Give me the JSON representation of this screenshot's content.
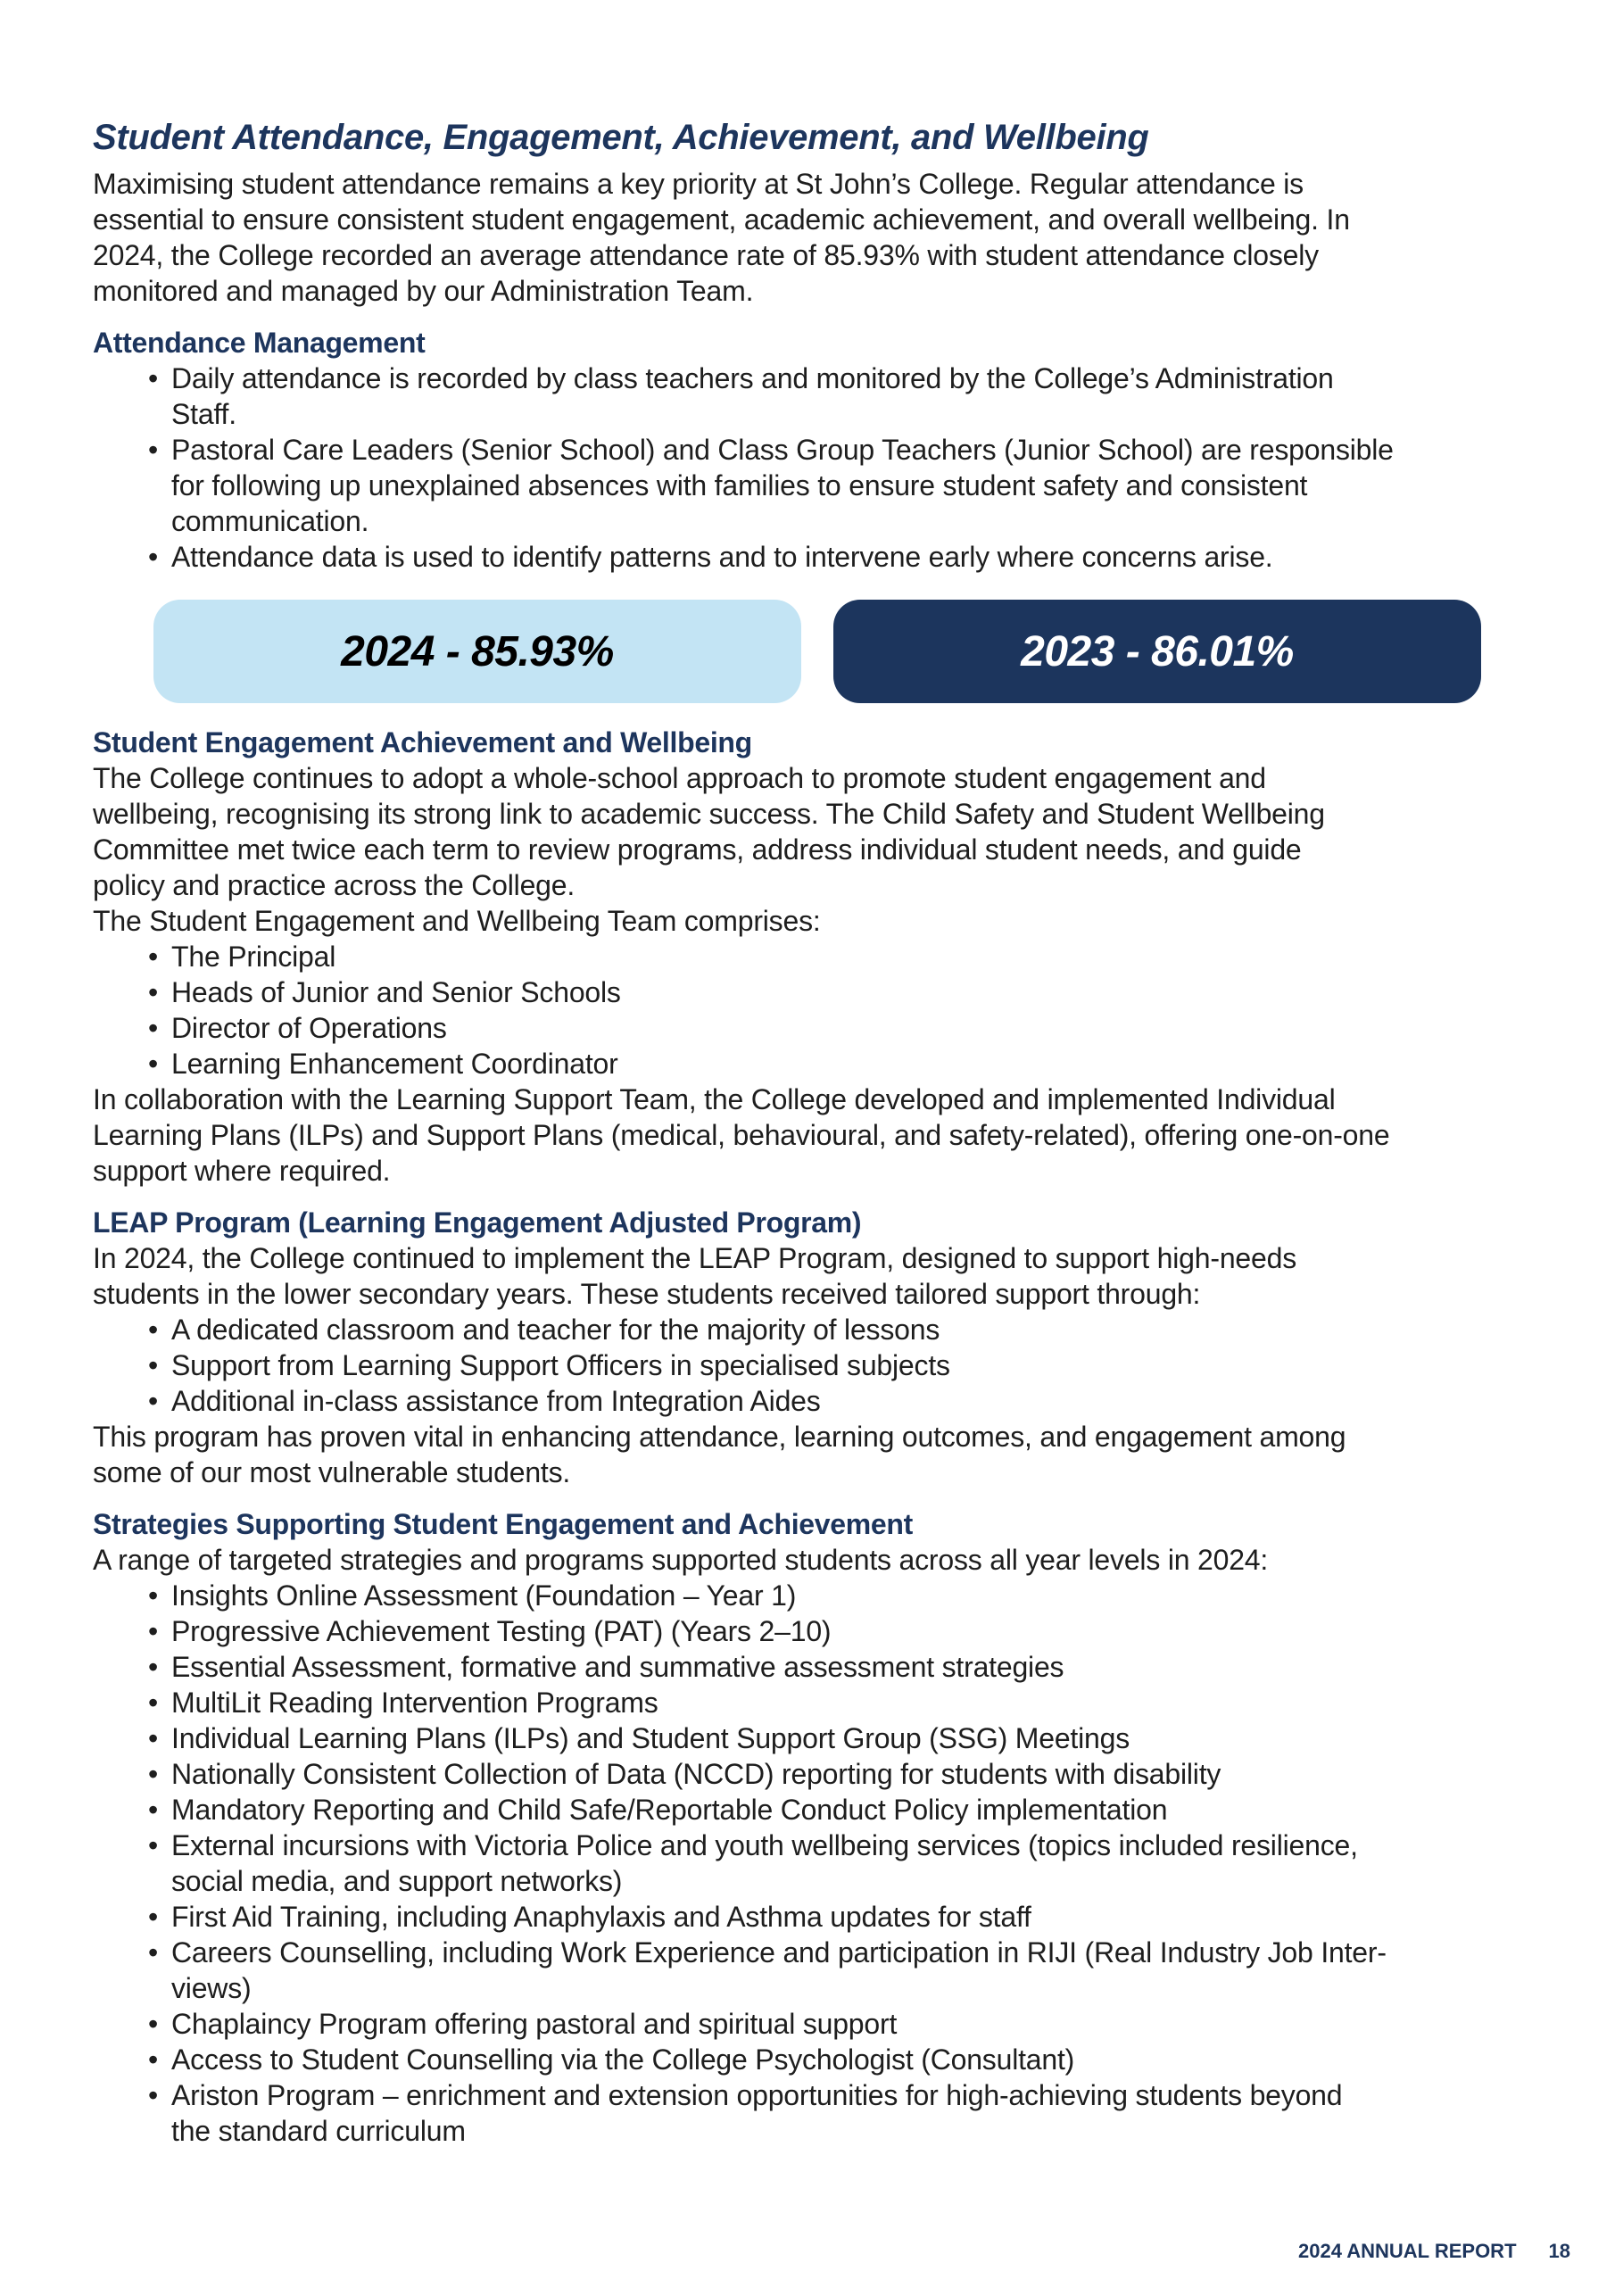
{
  "title": "Student Attendance, Engagement, Achievement, and Wellbeing",
  "intro": [
    "Maximising student attendance remains a key priority at St John’s College. Regular attendance is",
    "essential to ensure consistent student engagement, academic achievement, and overall wellbeing. In",
    "2024, the College recorded an average attendance rate of 85.93% with student attendance closely",
    "monitored and managed by our Administration Team."
  ],
  "attendance_management": {
    "heading": "Attendance Management",
    "bullets": [
      [
        "Daily attendance is recorded by class teachers and monitored by the College’s Administration",
        "Staff."
      ],
      [
        "Pastoral Care Leaders (Senior School) and Class Group Teachers (Junior School) are responsible",
        "for following up unexplained absences with families to ensure student safety and consistent",
        "communication."
      ],
      [
        "Attendance data is used to identify patterns and to intervene early where concerns arise."
      ]
    ]
  },
  "stats": [
    {
      "label": "2024 - 85.93%",
      "color": "#c3e4f4"
    },
    {
      "label": "2023 - 86.01%",
      "color": "#1c355d"
    }
  ],
  "engagement": {
    "heading": "Student Engagement Achievement and Wellbeing",
    "lines": [
      "The College continues to adopt a whole-school approach to promote student engagement and",
      "wellbeing, recognising its strong link to academic success. The Child Safety and Student Wellbeing",
      "Committee met twice each term to review programs, address individual student needs, and guide",
      "policy and practice across the College.",
      "The Student Engagement and Wellbeing Team comprises:"
    ],
    "bullets": [
      [
        "The Principal"
      ],
      [
        "Heads of Junior and Senior Schools"
      ],
      [
        "Director of Operations"
      ],
      [
        "Learning Enhancement Coordinator"
      ]
    ],
    "after": [
      "In collaboration with the Learning Support Team, the College developed and implemented Individual",
      "Learning Plans (ILPs) and Support Plans (medical, behavioural, and safety-related), offering one-on-one",
      "support where required."
    ]
  },
  "leap": {
    "heading": "LEAP Program (Learning Engagement Adjusted Program)",
    "lines": [
      "In 2024, the College continued to implement the LEAP Program, designed to support high-needs",
      "students in the lower secondary years. These students received tailored support through:"
    ],
    "bullets": [
      [
        "A dedicated classroom and teacher for the majority of lessons"
      ],
      [
        "Support from Learning Support Officers in specialised subjects"
      ],
      [
        "Additional in-class assistance from Integration Aides"
      ]
    ],
    "after": [
      "This program has proven vital in enhancing attendance, learning outcomes, and engagement among",
      "some of our most vulnerable students."
    ]
  },
  "strategies": {
    "heading": "Strategies Supporting Student Engagement and Achievement",
    "lines": [
      "A range of targeted strategies and programs supported students across all year levels in 2024:"
    ],
    "bullets": [
      [
        "Insights Online Assessment (Foundation – Year 1)"
      ],
      [
        "Progressive Achievement Testing (PAT) (Years 2–10)"
      ],
      [
        "Essential Assessment, formative and summative assessment strategies"
      ],
      [
        "MultiLit Reading Intervention Programs"
      ],
      [
        "Individual Learning Plans (ILPs) and Student Support Group (SSG) Meetings"
      ],
      [
        "Nationally Consistent Collection of Data (NCCD) reporting for students with disability"
      ],
      [
        "Mandatory Reporting and Child Safe/Reportable Conduct Policy implementation"
      ],
      [
        "External incursions with Victoria Police and youth wellbeing services (topics included resilience,",
        "social media, and support networks)"
      ],
      [
        "First Aid Training, including Anaphylaxis and Asthma updates for staff"
      ],
      [
        "Careers Counselling, including Work Experience and participation in RIJI (Real Industry Job Inter-",
        "views)"
      ],
      [
        "Chaplaincy Program offering pastoral and spiritual support"
      ],
      [
        "Access to Student Counselling via the College Psychologist (Consultant)"
      ],
      [
        "Ariston Program – enrichment and extension opportunities for high-achieving students beyond",
        "the standard curriculum"
      ]
    ],
    "after": []
  },
  "footer": {
    "report": "2024 ANNUAL REPORT",
    "page": "18"
  }
}
